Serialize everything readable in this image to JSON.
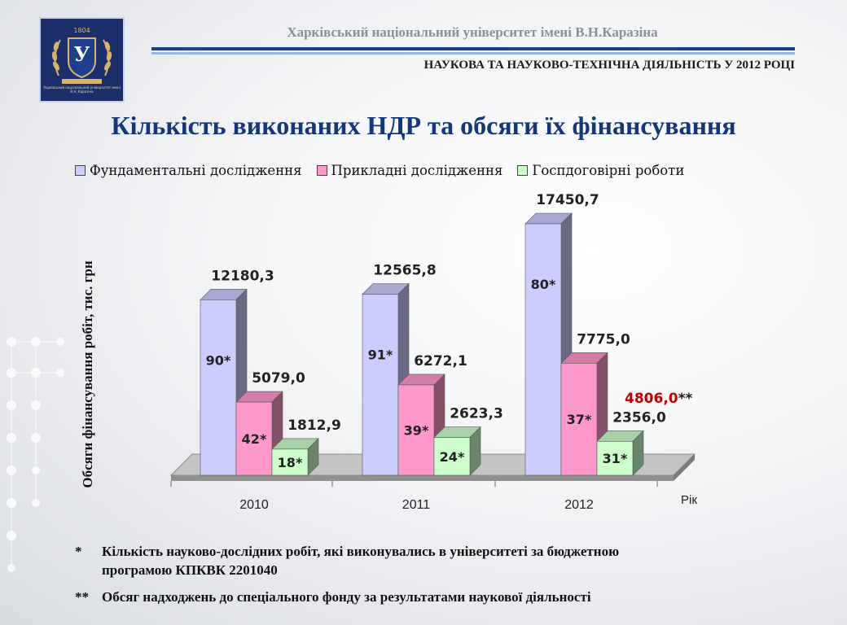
{
  "header": {
    "university": "Харківський національний університет імені В.Н.Каразіна",
    "section": "НАУКОВА ТА НАУКОВО-ТЕХНІЧНА ДІЯЛЬНІСТЬ У 2012 РОЦІ",
    "logo": {
      "year": "1804",
      "letter": "У",
      "caption": "Харківський національний університет імені В.Н. Каразіна"
    }
  },
  "title": "Кількість виконаних НДР  та обсяги їх фінансування",
  "chart_data": {
    "type": "bar",
    "categories": [
      "2010",
      "2011",
      "2012"
    ],
    "ylabel": "Обсяги фінансування робіт, тис. грн",
    "xlabel": "Рік",
    "ylim": [
      0,
      17450.7
    ],
    "legend_position": "top",
    "series": [
      {
        "name": "Фундаментальні  дослідження",
        "color": "#ccccff",
        "values": [
          12180.3,
          12565.8,
          17450.7
        ],
        "value_labels": [
          "12180,3",
          "12565,8",
          "17450,7"
        ],
        "count_labels": [
          "90*",
          "91*",
          "80*"
        ]
      },
      {
        "name": "Прикладні  дослідження",
        "color": "#ff99cc",
        "values": [
          5079.0,
          6272.1,
          7775.0
        ],
        "value_labels": [
          "5079,0",
          "6272,1",
          "7775,0"
        ],
        "count_labels": [
          "42*",
          "39*",
          "37*"
        ]
      },
      {
        "name": "Госпдоговірні  роботи",
        "color": "#ccffcc",
        "values": [
          1812.9,
          2623.3,
          2356.0
        ],
        "value_labels": [
          "1812,9",
          "2623,3",
          "2356,0"
        ],
        "count_labels": [
          "18*",
          "24*",
          "31*"
        ]
      }
    ],
    "special_fund": {
      "year": "2012",
      "value": 4806.0,
      "value_label": "4806,0",
      "suffix": "**",
      "color": "#c00000"
    }
  },
  "footnotes": [
    {
      "mark": "*",
      "line1": "Кількість науково-дослідних робіт, які виконувались в університеті за бюджетною",
      "line2": "програмою КПКВК 2201040"
    },
    {
      "mark": "**",
      "text": "Обсяг надходжень до спеціального фонду за результатами наукової діяльності"
    }
  ]
}
